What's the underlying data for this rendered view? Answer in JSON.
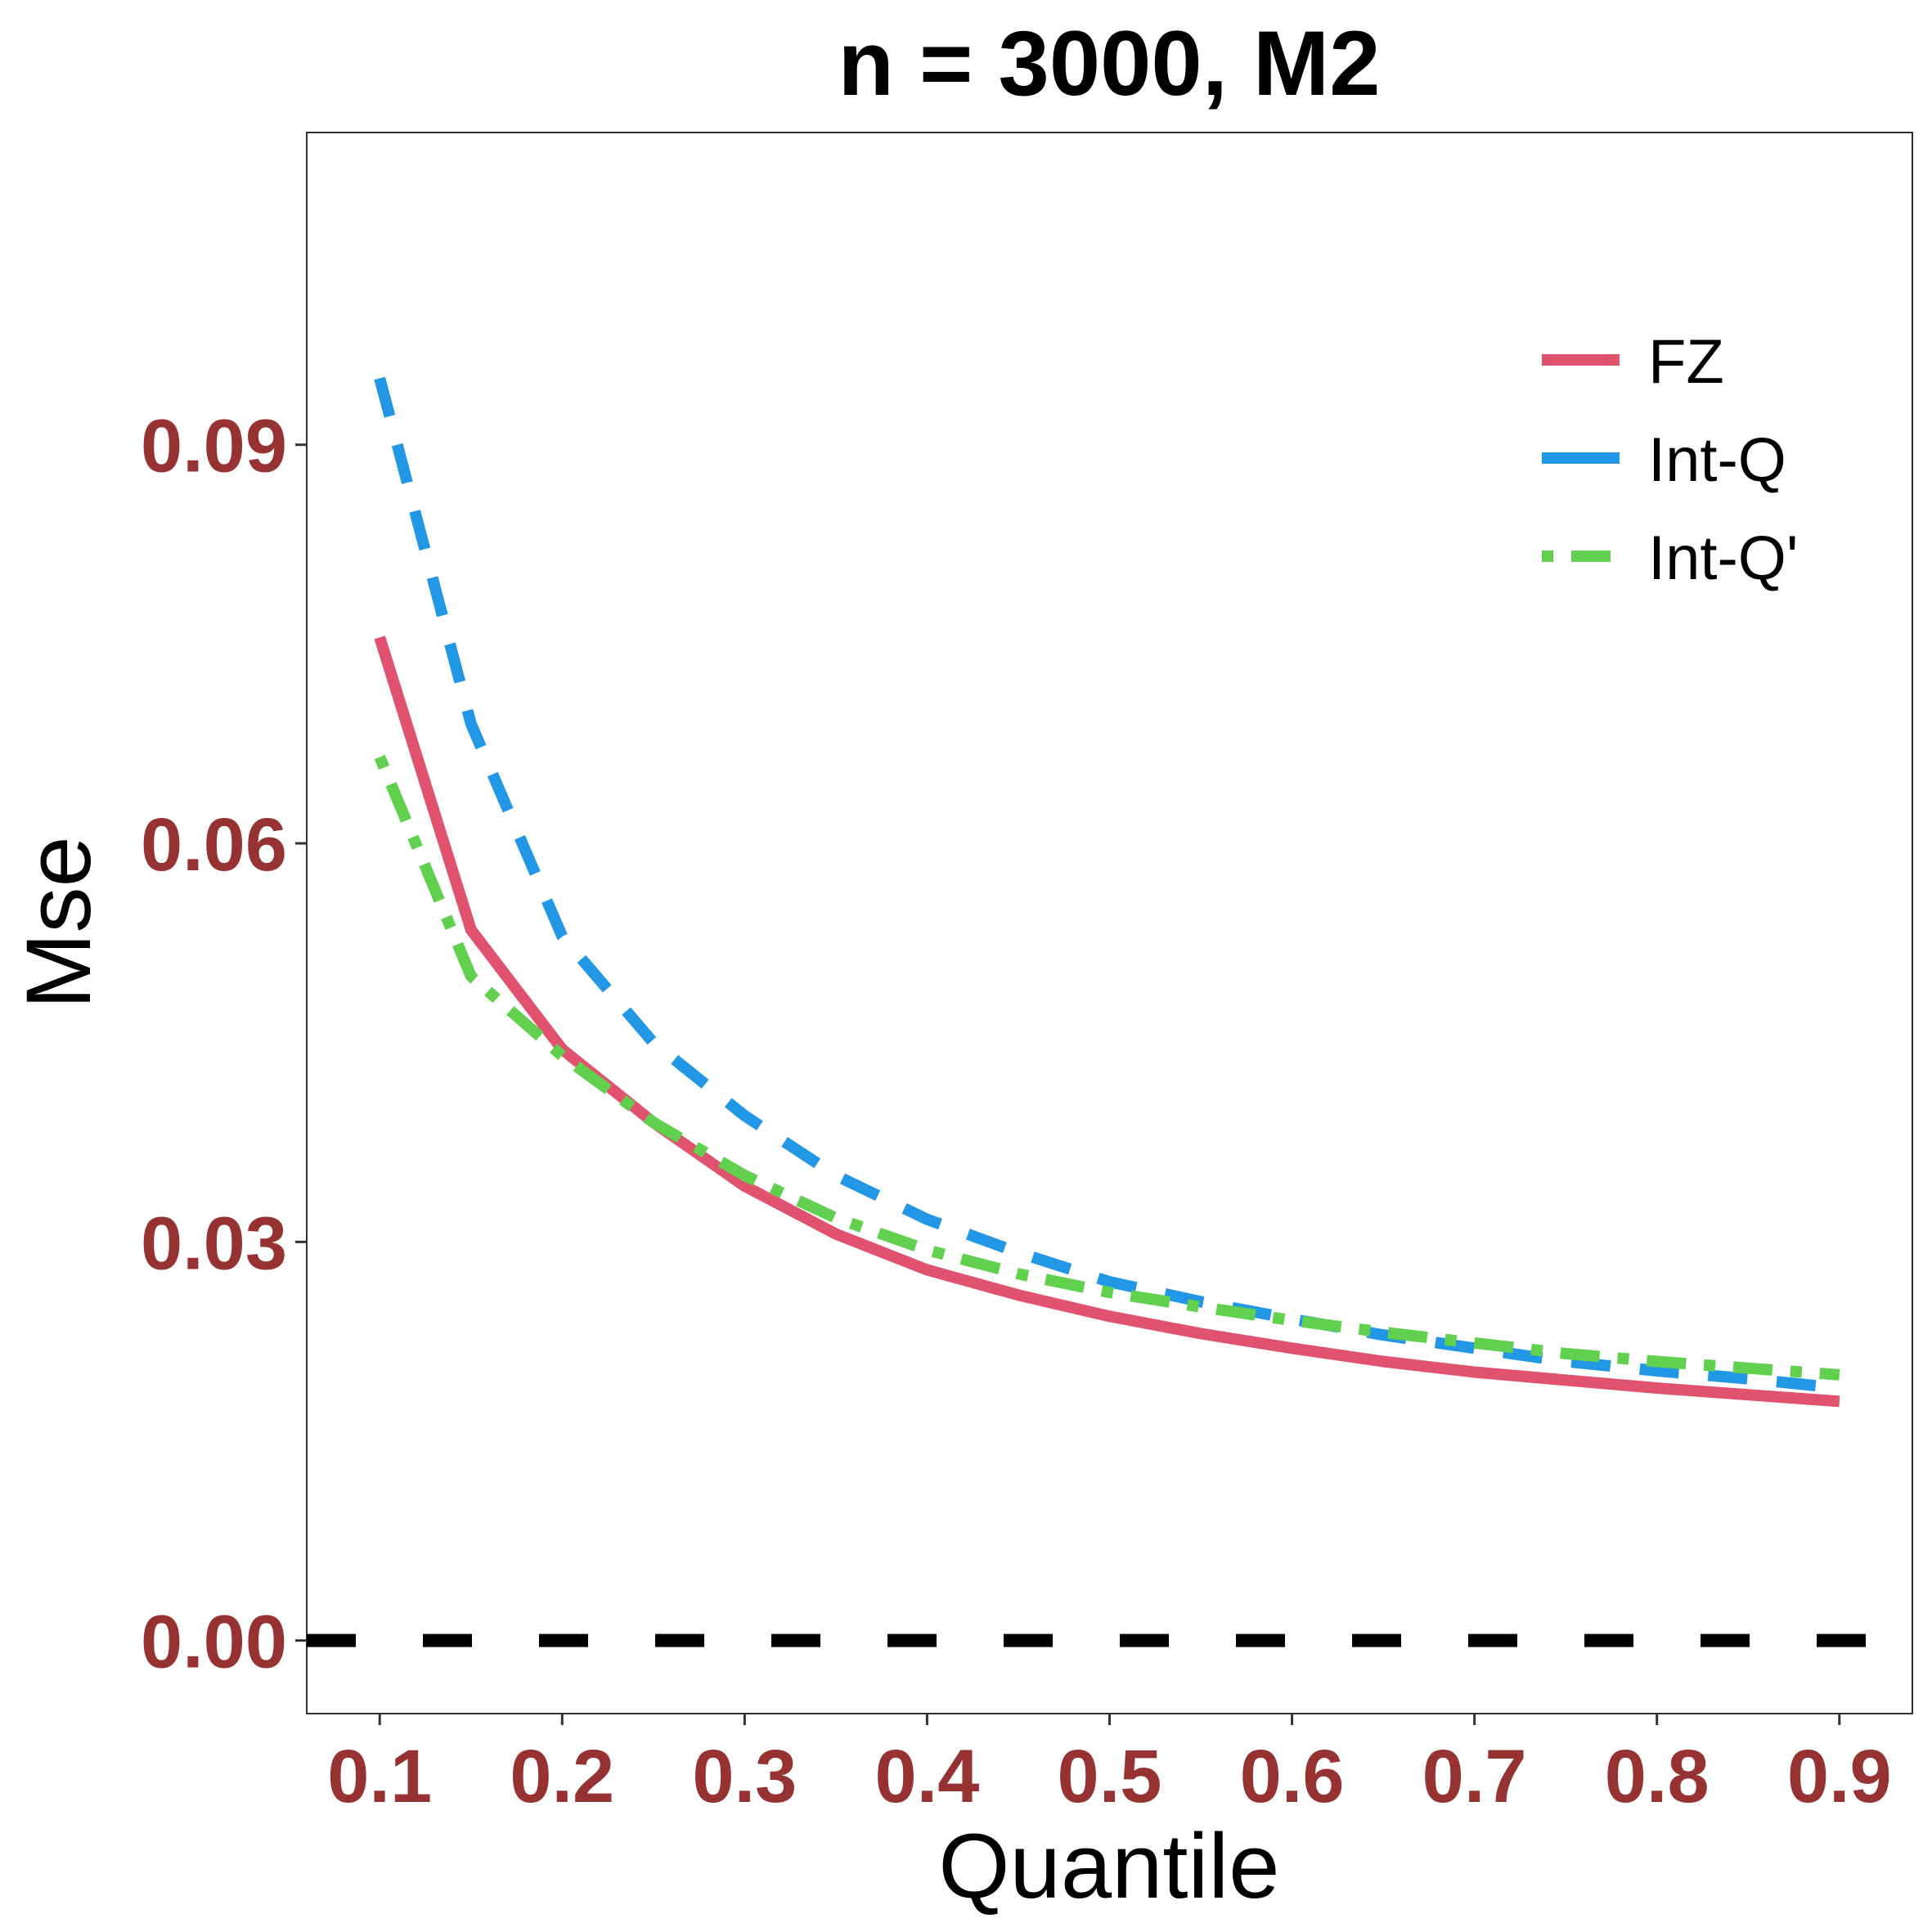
{
  "colors": {
    "tick_label": "#963232",
    "FZ": "#E0526E",
    "Int-Q": "#2297E6",
    "Int-Q'": "#61D04F",
    "reference_line": "#000000"
  },
  "chart_data": {
    "type": "line",
    "title": "n = 3000, M2",
    "xlabel": "Quantile",
    "ylabel": "Mse",
    "xlim": [
      0.06,
      0.94
    ],
    "ylim": [
      -0.0055,
      0.1135
    ],
    "xticks": [
      0.1,
      0.2,
      0.3,
      0.4,
      0.5,
      0.6,
      0.7,
      0.8,
      0.9
    ],
    "xtick_labels": [
      "0.1",
      "0.2",
      "0.3",
      "0.4",
      "0.5",
      "0.6",
      "0.7",
      "0.8",
      "0.9"
    ],
    "yticks": [
      0.0,
      0.03,
      0.06,
      0.09
    ],
    "ytick_labels": [
      "0.00",
      "0.03",
      "0.06",
      "0.09"
    ],
    "grid": false,
    "legend_position": "top-right",
    "x": [
      0.1,
      0.15,
      0.2,
      0.25,
      0.3,
      0.35,
      0.4,
      0.45,
      0.5,
      0.55,
      0.6,
      0.65,
      0.7,
      0.75,
      0.8,
      0.85,
      0.9
    ],
    "series": [
      {
        "name": "FZ",
        "line_style": "solid",
        "values": [
          0.0755,
          0.0535,
          0.0445,
          0.039,
          0.0342,
          0.0306,
          0.0279,
          0.026,
          0.0244,
          0.0231,
          0.022,
          0.021,
          0.0202,
          0.0196,
          0.019,
          0.0185,
          0.018
        ]
      },
      {
        "name": "Int-Q",
        "line_style": "dashed",
        "values": [
          0.095,
          0.069,
          0.053,
          0.045,
          0.0395,
          0.035,
          0.0317,
          0.0292,
          0.027,
          0.0255,
          0.0242,
          0.023,
          0.022,
          0.021,
          0.0203,
          0.0197,
          0.019
        ]
      },
      {
        "name": "Int-Q'",
        "line_style": "dotdash",
        "values": [
          0.0665,
          0.05,
          0.044,
          0.039,
          0.035,
          0.0318,
          0.0294,
          0.0276,
          0.0262,
          0.0251,
          0.0241,
          0.0232,
          0.0224,
          0.0216,
          0.021,
          0.0205,
          0.02
        ]
      }
    ],
    "reference_lines": [
      {
        "y": 0.0,
        "line_style": "dashed"
      }
    ]
  }
}
